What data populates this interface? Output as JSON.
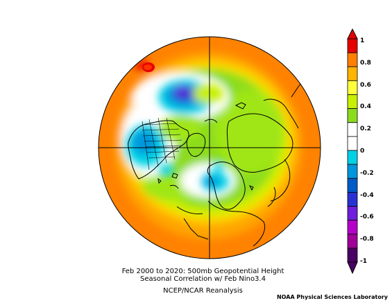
{
  "map": {
    "caption_line1": "Feb 2000 to 2020: 500mb Geopotential Height",
    "caption_line2": "Seasonal Correlation w/ Feb Nino3.4",
    "caption_line3": "NCEP/NCAR Reanalysis",
    "credit": "NOAA Physical Sciences Laboratory"
  },
  "colorbar": {
    "labels": [
      "1",
      "0.8",
      "0.6",
      "0.4",
      "0.2",
      "0",
      "-0.2",
      "-0.4",
      "-0.6",
      "-0.8",
      "-1"
    ],
    "colors": [
      "#e60000",
      "#ff7f00",
      "#ffb400",
      "#ffff3c",
      "#c8f000",
      "#8cdc1e",
      "#ffffff",
      "#ffffff",
      "#00d2e6",
      "#0096dc",
      "#005ac8",
      "#2832d2",
      "#6e1edc",
      "#b400c8",
      "#a00096",
      "#4b0064"
    ]
  }
}
